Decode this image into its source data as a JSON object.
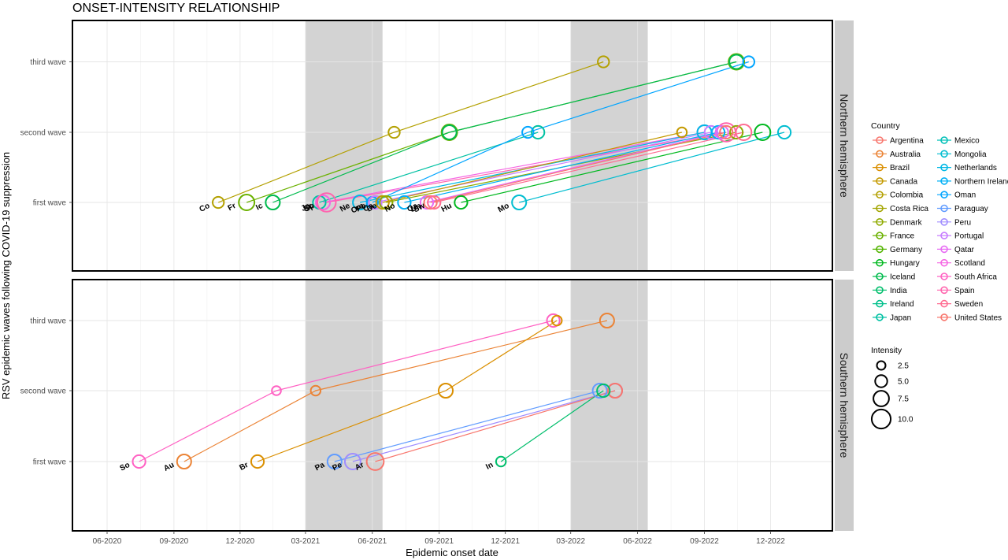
{
  "chart_data": {
    "type": "scatter",
    "title": "ONSET-INTENSITY RELATIONSHIP",
    "xlabel": "Epidemic onset date",
    "ylabel": "RSV epidemic waves following COVID-19 suppression",
    "x_ticks": [
      "06-2020",
      "09-2020",
      "12-2020",
      "03-2021",
      "06-2021",
      "09-2021",
      "12-2021",
      "03-2022",
      "06-2022",
      "09-2022",
      "12-2022"
    ],
    "y_ticks": [
      "first wave",
      "second wave",
      "third wave"
    ],
    "legend_title": "Country",
    "size_legend_title": "Intensity",
    "size_legend_values": [
      2.5,
      5.0,
      7.5,
      10.0
    ],
    "countries": [
      {
        "name": "Argentina",
        "color": "#F8766D"
      },
      {
        "name": "Australia",
        "color": "#EB8335"
      },
      {
        "name": "Brazil",
        "color": "#DA8F00"
      },
      {
        "name": "Canada",
        "color": "#C49A00"
      },
      {
        "name": "Colombia",
        "color": "#B3A000"
      },
      {
        "name": "Costa Rica",
        "color": "#A3A500"
      },
      {
        "name": "Denmark",
        "color": "#8FAA00"
      },
      {
        "name": "France",
        "color": "#6BB100"
      },
      {
        "name": "Germany",
        "color": "#53B400"
      },
      {
        "name": "Hungary",
        "color": "#00B81F"
      },
      {
        "name": "Iceland",
        "color": "#00BB4E"
      },
      {
        "name": "India",
        "color": "#00BE6C"
      },
      {
        "name": "Ireland",
        "color": "#00C08B"
      },
      {
        "name": "Japan",
        "color": "#00C1A3"
      },
      {
        "name": "Mexico",
        "color": "#00C0B8"
      },
      {
        "name": "Mongolia",
        "color": "#00BDD0"
      },
      {
        "name": "Netherlands",
        "color": "#00B8E5"
      },
      {
        "name": "Northern Ireland",
        "color": "#00B0F6"
      },
      {
        "name": "Oman",
        "color": "#00A5FF"
      },
      {
        "name": "Paraguay",
        "color": "#619CFF"
      },
      {
        "name": "Peru",
        "color": "#9F8CFF"
      },
      {
        "name": "Portugal",
        "color": "#C77CFF"
      },
      {
        "name": "Qatar",
        "color": "#E76BF3"
      },
      {
        "name": "Scotland",
        "color": "#F564E3"
      },
      {
        "name": "South Africa",
        "color": "#FF61C3"
      },
      {
        "name": "Spain",
        "color": "#FF65AE"
      },
      {
        "name": "Sweden",
        "color": "#FF6C91"
      },
      {
        "name": "United States",
        "color": "#F8766D"
      }
    ],
    "panels": [
      {
        "name": "Northern hemisphere",
        "shaded_periods": [
          [
            "2021-03-01",
            "2021-06-15"
          ],
          [
            "2022-03-01",
            "2022-06-15"
          ]
        ],
        "series": [
          {
            "country": "Colombia",
            "label": "Co",
            "points": [
              {
                "x": "2020-11-01",
                "y": 1,
                "size": 4
              },
              {
                "x": "2021-07-01",
                "y": 2,
                "size": 4
              },
              {
                "x": "2022-04-15",
                "y": 3,
                "size": 4
              }
            ]
          },
          {
            "country": "France",
            "label": "Fr",
            "points": [
              {
                "x": "2020-12-10",
                "y": 1,
                "size": 7
              },
              {
                "x": "2021-09-15",
                "y": 2,
                "size": 7
              },
              {
                "x": "2022-10-15",
                "y": 3,
                "size": 7
              }
            ]
          },
          {
            "country": "Iceland",
            "label": "Ic",
            "points": [
              {
                "x": "2021-01-15",
                "y": 1,
                "size": 6
              },
              {
                "x": "2021-09-15",
                "y": 2,
                "size": 6
              },
              {
                "x": "2022-10-15",
                "y": 3,
                "size": 6
              }
            ]
          },
          {
            "country": "Japan",
            "label": "Ja",
            "points": [
              {
                "x": "2021-03-20",
                "y": 1,
                "size": 5
              },
              {
                "x": "2022-01-15",
                "y": 2,
                "size": 5
              }
            ]
          },
          {
            "country": "Scotland",
            "label": "Sc",
            "points": [
              {
                "x": "2021-03-25",
                "y": 1,
                "size": 6
              },
              {
                "x": "2022-09-01",
                "y": 2,
                "size": 6
              }
            ]
          },
          {
            "country": "Spain",
            "label": "Sp",
            "points": [
              {
                "x": "2021-03-30",
                "y": 1,
                "size": 9
              },
              {
                "x": "2022-10-01",
                "y": 2,
                "size": 9
              }
            ]
          },
          {
            "country": "Netherlands",
            "label": "Ne",
            "points": [
              {
                "x": "2021-05-15",
                "y": 1,
                "size": 6
              },
              {
                "x": "2022-09-01",
                "y": 2,
                "size": 6
              }
            ]
          },
          {
            "country": "Oman",
            "label": "Om",
            "points": [
              {
                "x": "2021-06-01",
                "y": 1,
                "size": 4
              },
              {
                "x": "2022-01-01",
                "y": 2,
                "size": 4
              },
              {
                "x": "2022-11-01",
                "y": 3,
                "size": 4
              }
            ]
          },
          {
            "country": "Portugal",
            "label": "Po",
            "points": [
              {
                "x": "2021-06-05",
                "y": 1,
                "size": 5
              },
              {
                "x": "2022-09-10",
                "y": 2,
                "size": 5
              }
            ]
          },
          {
            "country": "Canada",
            "label": "Ca",
            "points": [
              {
                "x": "2021-06-15",
                "y": 1,
                "size": 5
              },
              {
                "x": "2022-08-01",
                "y": 2,
                "size": 3
              }
            ]
          },
          {
            "country": "Denmark",
            "label": "De",
            "points": [
              {
                "x": "2021-06-20",
                "y": 1,
                "size": 5
              },
              {
                "x": "2022-10-15",
                "y": 2,
                "size": 5
              }
            ]
          },
          {
            "country": "Northern Ireland",
            "label": "No",
            "points": [
              {
                "x": "2021-07-15",
                "y": 1,
                "size": 5
              },
              {
                "x": "2022-09-20",
                "y": 2,
                "size": 5
              }
            ]
          },
          {
            "country": "Qatar",
            "label": "Qa",
            "points": [
              {
                "x": "2021-08-15",
                "y": 1,
                "size": 5
              },
              {
                "x": "2022-09-25",
                "y": 2,
                "size": 5
              }
            ]
          },
          {
            "country": "United States",
            "label": "Un",
            "points": [
              {
                "x": "2021-08-20",
                "y": 1,
                "size": 5
              },
              {
                "x": "2022-10-01",
                "y": 2,
                "size": 5
              }
            ]
          },
          {
            "country": "Sweden",
            "label": "Sw",
            "points": [
              {
                "x": "2021-08-25",
                "y": 1,
                "size": 5
              },
              {
                "x": "2022-10-25",
                "y": 2,
                "size": 7
              }
            ]
          },
          {
            "country": "Hungary",
            "label": "Hu",
            "points": [
              {
                "x": "2021-10-01",
                "y": 1,
                "size": 5
              },
              {
                "x": "2022-11-20",
                "y": 2,
                "size": 7
              }
            ]
          },
          {
            "country": "Mongolia",
            "label": "Mo",
            "points": [
              {
                "x": "2021-12-20",
                "y": 1,
                "size": 6
              },
              {
                "x": "2022-12-20",
                "y": 2,
                "size": 5
              }
            ]
          }
        ]
      },
      {
        "name": "Southern hemisphere",
        "shaded_periods": [
          [
            "2021-03-01",
            "2021-06-15"
          ],
          [
            "2022-03-01",
            "2022-06-15"
          ]
        ],
        "series": [
          {
            "country": "South Africa",
            "label": "So",
            "points": [
              {
                "x": "2020-07-15",
                "y": 1,
                "size": 5
              },
              {
                "x": "2021-01-20",
                "y": 2,
                "size": 2.5
              },
              {
                "x": "2022-02-05",
                "y": 3,
                "size": 5
              }
            ]
          },
          {
            "country": "Australia",
            "label": "Au",
            "points": [
              {
                "x": "2020-09-15",
                "y": 1,
                "size": 6
              },
              {
                "x": "2021-03-15",
                "y": 2,
                "size": 3
              },
              {
                "x": "2022-04-20",
                "y": 3,
                "size": 6
              }
            ]
          },
          {
            "country": "Brazil",
            "label": "Br",
            "points": [
              {
                "x": "2020-12-25",
                "y": 1,
                "size": 5
              },
              {
                "x": "2021-09-10",
                "y": 2,
                "size": 6
              },
              {
                "x": "2022-02-10",
                "y": 3,
                "size": 3
              }
            ]
          },
          {
            "country": "Paraguay",
            "label": "Pa",
            "points": [
              {
                "x": "2021-04-10",
                "y": 1,
                "size": 6
              },
              {
                "x": "2022-04-10",
                "y": 2,
                "size": 6
              }
            ]
          },
          {
            "country": "Peru",
            "label": "Pe",
            "points": [
              {
                "x": "2021-05-05",
                "y": 1,
                "size": 7
              },
              {
                "x": "2022-05-01",
                "y": 2,
                "size": 6
              }
            ]
          },
          {
            "country": "Argentina",
            "label": "Ar",
            "points": [
              {
                "x": "2021-06-05",
                "y": 1,
                "size": 8
              },
              {
                "x": "2022-05-01",
                "y": 2,
                "size": 6
              }
            ]
          },
          {
            "country": "India",
            "label": "In",
            "points": [
              {
                "x": "2021-11-25",
                "y": 1,
                "size": 3
              },
              {
                "x": "2022-04-15",
                "y": 2,
                "size": 5
              }
            ]
          }
        ]
      }
    ]
  }
}
